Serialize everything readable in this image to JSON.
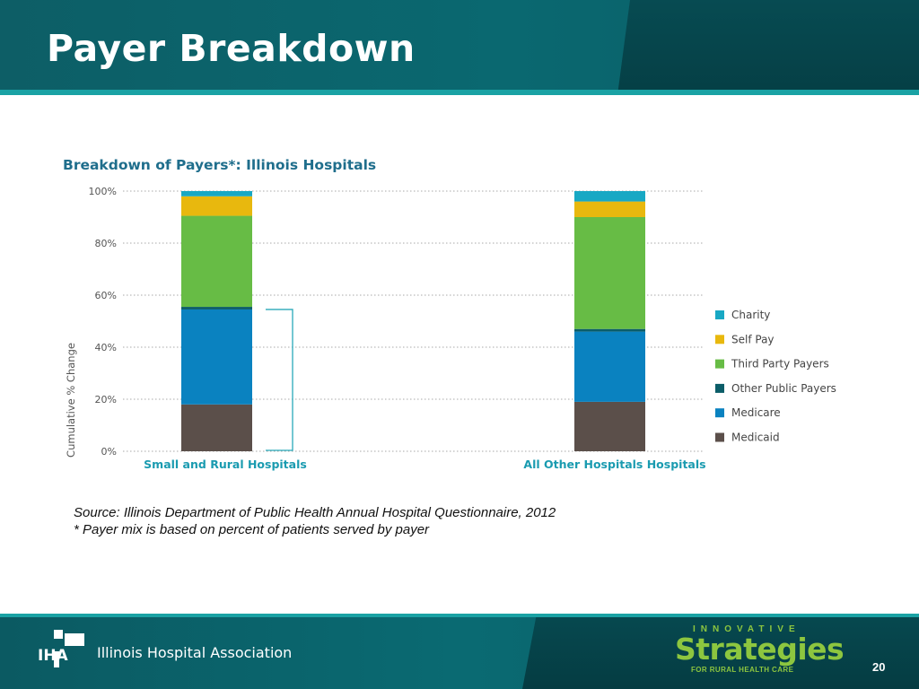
{
  "slide": {
    "title": "Payer Breakdown",
    "page_number": "20"
  },
  "source": {
    "line1": "Source: Illinois Department of Public Health Annual Hospital Questionnaire, 2012",
    "line2": "* Payer mix is based on percent of patients served by payer"
  },
  "footer": {
    "iha_logo_text": "IHA",
    "association_name": "Illinois Hospital Association",
    "brand_top": "INNOVATIVE",
    "brand_main": "Strategies",
    "brand_tagline": "FOR RURAL HEALTH CARE"
  },
  "colors": {
    "header_bg": "#0a6870",
    "accent_line": "#1aa2a4",
    "chart_title": "#1f6e8c",
    "category_label": "#1a9bb0",
    "brand_green": "#8dc63f"
  },
  "chart_data": {
    "type": "bar",
    "stacked": true,
    "title": "Breakdown of Payers*: Illinois Hospitals",
    "xlabel": "",
    "ylabel": "Cumulative % Change",
    "ylim": [
      0,
      100
    ],
    "yticks": [
      "0%",
      "20%",
      "40%",
      "60%",
      "80%",
      "100%"
    ],
    "grid": true,
    "legend_position": "right",
    "categories": [
      "Small and Rural Hospitals",
      "All Other Hospitals Hospitals"
    ],
    "series": [
      {
        "name": "Medicaid",
        "color": "#5b4f4a",
        "values": [
          18,
          19
        ]
      },
      {
        "name": "Medicare",
        "color": "#0a82c0",
        "values": [
          36.5,
          27
        ]
      },
      {
        "name": "Other Public Payers",
        "color": "#0b5d68",
        "values": [
          1,
          1
        ]
      },
      {
        "name": "Third Party Payers",
        "color": "#67bc45",
        "values": [
          35,
          43
        ]
      },
      {
        "name": "Self Pay",
        "color": "#e8b80e",
        "values": [
          7.5,
          6
        ]
      },
      {
        "name": "Charity",
        "color": "#18a8c4",
        "values": [
          2,
          4
        ]
      }
    ],
    "legend_order": [
      "Charity",
      "Self Pay",
      "Third Party Payers",
      "Other Public Payers",
      "Medicare",
      "Medicaid"
    ],
    "bracket": {
      "category": "Small and Rural Hospitals",
      "from": 0,
      "to": 54.5
    }
  }
}
